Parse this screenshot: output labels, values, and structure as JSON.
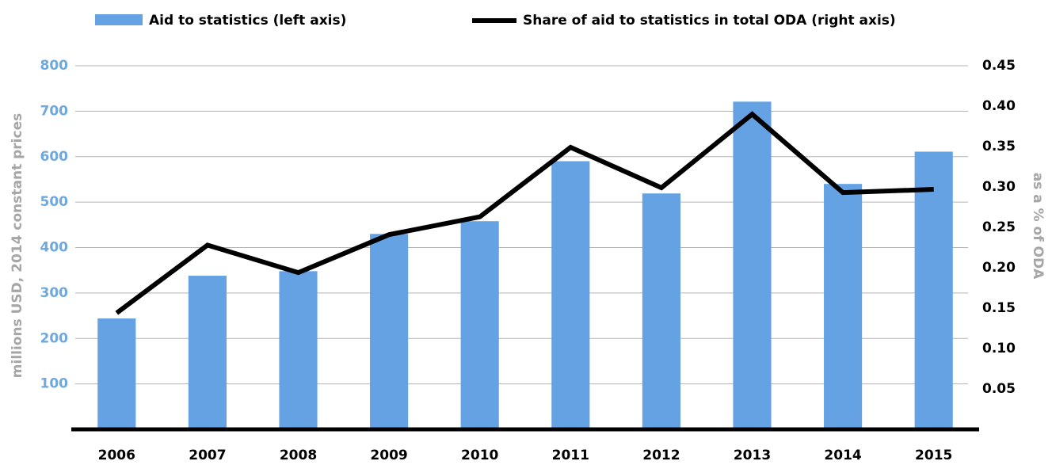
{
  "chart_data": {
    "type": "bar_line",
    "categories": [
      "2006",
      "2007",
      "2008",
      "2009",
      "2010",
      "2011",
      "2012",
      "2013",
      "2014",
      "2015"
    ],
    "series": [
      {
        "name": "Aid to statistics (left axis)",
        "type": "bar",
        "color": "#64a2e3",
        "axis": "y",
        "values": [
          244,
          338,
          348,
          430,
          458,
          590,
          519,
          721,
          540,
          611
        ]
      },
      {
        "name": "Share of aid to statistics in total ODA (right axis)",
        "type": "line",
        "color": "#000000",
        "axis": "y2",
        "values": [
          0.144,
          0.228,
          0.194,
          0.241,
          0.263,
          0.349,
          0.299,
          0.39,
          0.293,
          0.297
        ]
      }
    ],
    "ylabel": "millions USD, 2014 constant prices",
    "y2label": "as a % of ODA",
    "ylim": [
      0,
      800
    ],
    "yticks": [
      100,
      200,
      300,
      400,
      500,
      600,
      700,
      800
    ],
    "y2lim": [
      0,
      0.45
    ],
    "y2ticks": [
      0.05,
      {
        "value": 0.1,
        "label": "0.10"
      },
      0.15,
      {
        "value": 0.2,
        "label": "0.20"
      },
      0.25,
      {
        "value": 0.3,
        "label": "0.30"
      },
      0.35,
      {
        "value": 0.4,
        "label": "0.40"
      },
      0.45
    ],
    "grid": true,
    "legend": "top"
  }
}
